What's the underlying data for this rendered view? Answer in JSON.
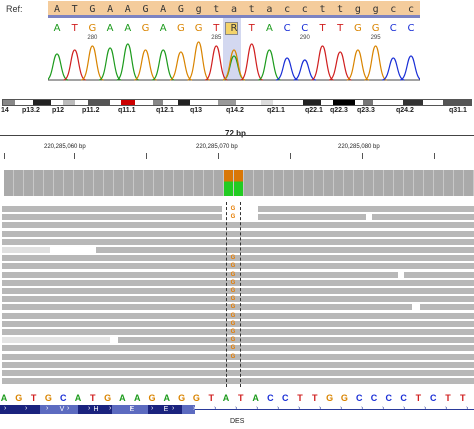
{
  "sanger": {
    "ref_label": "Ref:",
    "ref_bases": [
      "A",
      "T",
      "G",
      "A",
      "A",
      "G",
      "A",
      "G",
      "g",
      "t",
      "a",
      "t",
      "a",
      "c",
      "c",
      "t",
      "t",
      "g",
      "g",
      "c",
      "c"
    ],
    "read_bases": [
      "A",
      "T",
      "G",
      "A",
      "A",
      "G",
      "A",
      "G",
      "G",
      "T",
      "R",
      "T",
      "A",
      "C",
      "C",
      "T",
      "T",
      "G",
      "G",
      "C",
      "C"
    ],
    "position_ticks": [
      "280",
      "285",
      "290",
      "295"
    ],
    "variant_call": "R"
  },
  "ideogram": {
    "bands": [
      "14",
      "p13.2",
      "p12",
      "p11.2",
      "q11.1",
      "q12.1",
      "q13",
      "q14.2",
      "q21.1",
      "q22.1",
      "q22.3",
      "q23.3",
      "q24.2",
      "q31.1"
    ]
  },
  "ruler": {
    "span_label": "72 bp",
    "coordinates": [
      "220,285,060 bp",
      "220,285,070 bp",
      "220,285,080 bp"
    ]
  },
  "alignment": {
    "variant_allele": "G",
    "g_rows": 15
  },
  "sequence": {
    "bases": [
      "A",
      "G",
      "T",
      "G",
      "C",
      "A",
      "T",
      "G",
      "A",
      "A",
      "G",
      "A",
      "G",
      "G",
      "T",
      "A",
      "T",
      "A",
      "C",
      "C",
      "T",
      "T",
      "G",
      "G",
      "C",
      "C",
      "C",
      "C",
      "T",
      "C",
      "T",
      "T"
    ]
  },
  "gene": {
    "name": "DES",
    "amino_acids": [
      "V",
      "H",
      "E",
      "E"
    ]
  },
  "colors": {
    "A": "#1d9b1d",
    "C": "#1a2fd6",
    "G": "#d98400",
    "T": "#d01f1f",
    "variant_top": "#d97706",
    "variant_bottom": "#22cc22"
  }
}
